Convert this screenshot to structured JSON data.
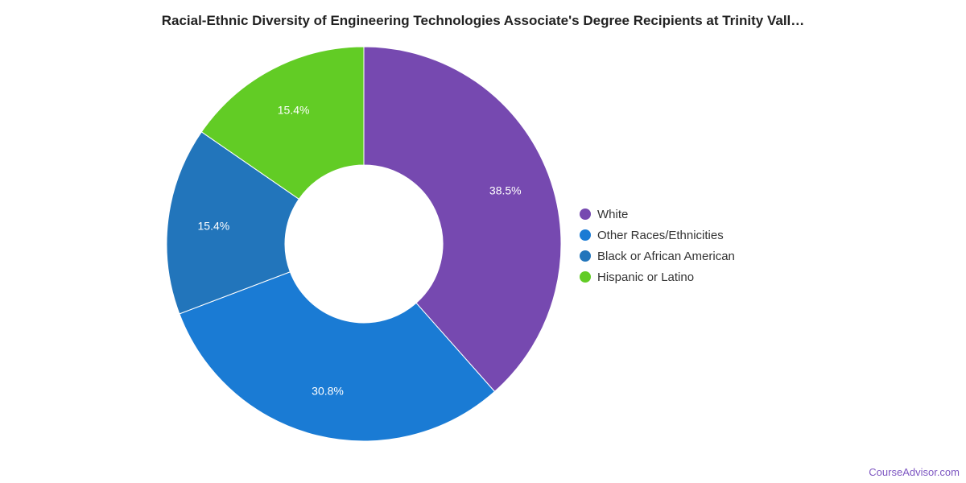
{
  "title": "Racial-Ethnic Diversity of Engineering Technologies Associate's Degree Recipients at Trinity Vall…",
  "footer": "CourseAdvisor.com",
  "chart_data": {
    "type": "pie",
    "donut": true,
    "slices": [
      {
        "label": "White",
        "value": 38.5,
        "display": "38.5%",
        "color": "#7649b0"
      },
      {
        "label": "Other Races/Ethnicities",
        "value": 30.8,
        "display": "30.8%",
        "color": "#1a7bd4"
      },
      {
        "label": "Black or African American",
        "value": 15.4,
        "display": "15.4%",
        "color": "#2275bb"
      },
      {
        "label": "Hispanic or Latino",
        "value": 15.4,
        "display": "15.4%",
        "color": "#62cc25"
      }
    ],
    "legend_placement": "right"
  }
}
